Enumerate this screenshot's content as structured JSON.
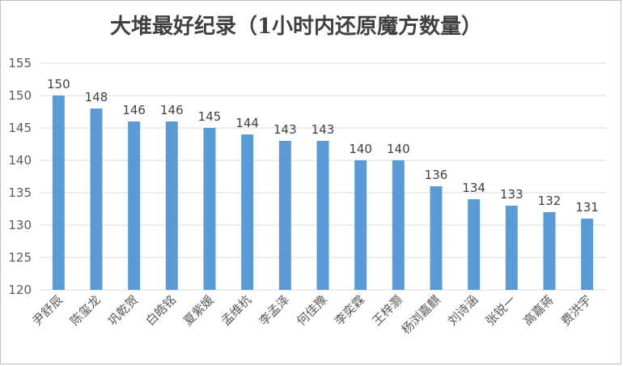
{
  "chart_data": {
    "type": "bar",
    "title": "大堆最好纪录（1小时内还原魔方数量）",
    "xlabel": "",
    "ylabel": "",
    "ylim": [
      120,
      155
    ],
    "yticks": [
      120,
      125,
      130,
      135,
      140,
      145,
      150,
      155
    ],
    "grid": true,
    "legend": "none",
    "bar_color": "#5b9bd5",
    "categories": [
      "尹舒辰",
      "陈玺龙",
      "巩乾贺",
      "白皓铭",
      "夏紫媛",
      "孟维杭",
      "李孟泽",
      "何佳豫",
      "李奕霖",
      "王梓灏",
      "杨浏嘉麒",
      "刘诗涵",
      "张锐一",
      "高嘉蒋",
      "费洪宇"
    ],
    "values": [
      150,
      148,
      146,
      146,
      145,
      144,
      143,
      143,
      140,
      140,
      136,
      134,
      133,
      132,
      131
    ]
  }
}
